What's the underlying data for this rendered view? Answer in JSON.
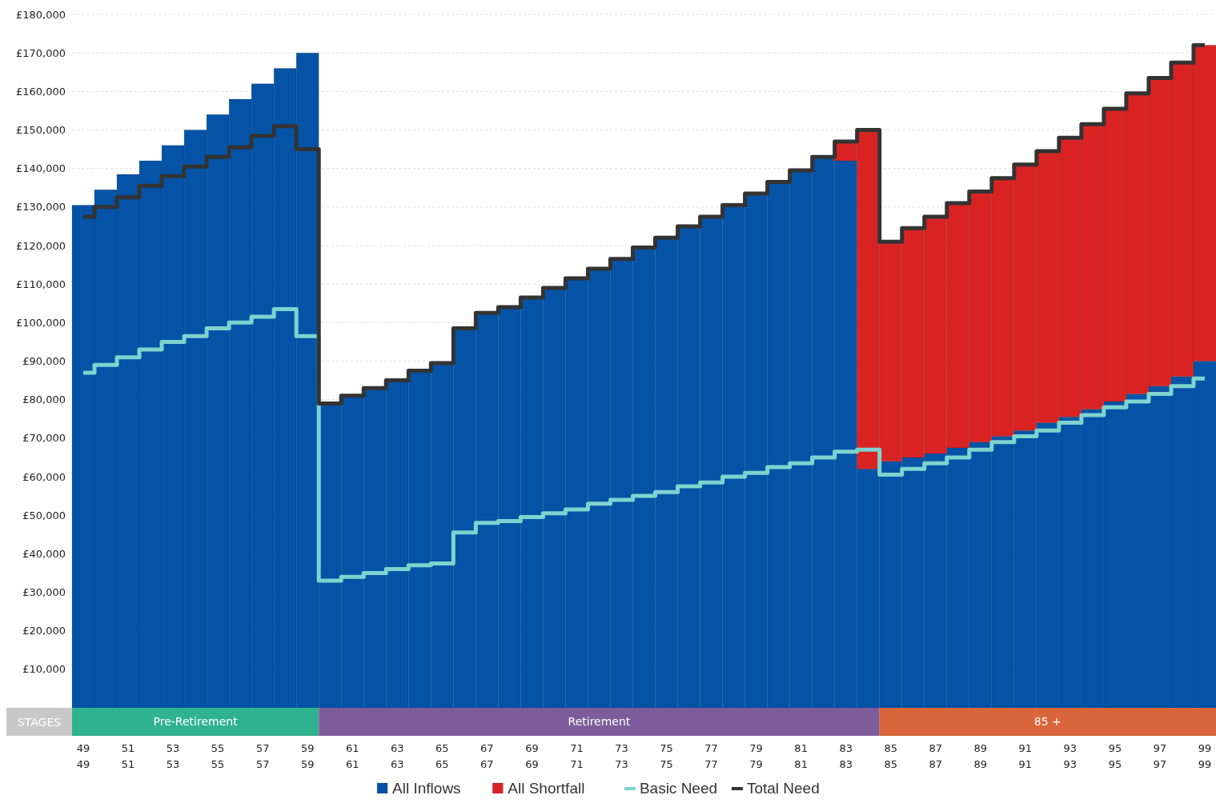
{
  "chart_data": {
    "type": "bar",
    "stacked": true,
    "categories": [
      "49",
      null,
      "51",
      null,
      "53",
      null,
      "55",
      null,
      "57",
      null,
      "59",
      null,
      "61",
      null,
      "63",
      null,
      "65",
      null,
      "67",
      null,
      "69",
      null,
      "71",
      null,
      "73",
      null,
      "75",
      null,
      "77",
      null,
      "79",
      null,
      "81",
      null,
      "83",
      null,
      "85",
      null,
      "87",
      null,
      "89",
      null,
      "91",
      null,
      "93",
      null,
      "95",
      null,
      "97",
      null,
      "99"
    ],
    "series": [
      {
        "name": "All Inflows",
        "color": "#0553a6",
        "values": [
          130500,
          134500,
          138500,
          142000,
          146000,
          150000,
          154000,
          158000,
          162000,
          166000,
          170000,
          79000,
          81000,
          83000,
          85000,
          87500,
          89500,
          98500,
          102500,
          104000,
          106500,
          109000,
          111500,
          114000,
          116500,
          119500,
          122000,
          125000,
          127500,
          130500,
          133500,
          136500,
          139500,
          143000,
          142000,
          62000,
          64000,
          65000,
          66000,
          67500,
          69000,
          70500,
          72000,
          74000,
          75500,
          77500,
          79500,
          81500,
          83500,
          86000,
          90000
        ]
      },
      {
        "name": "All Shortfall",
        "color": "#d92323",
        "values": [
          null,
          null,
          null,
          null,
          null,
          null,
          null,
          null,
          null,
          null,
          null,
          null,
          null,
          null,
          null,
          null,
          null,
          null,
          null,
          null,
          null,
          null,
          null,
          null,
          null,
          null,
          null,
          null,
          null,
          null,
          null,
          null,
          null,
          null,
          5000,
          88000,
          57000,
          59500,
          61500,
          63500,
          65000,
          67000,
          69000,
          70500,
          72500,
          74000,
          76000,
          78000,
          80000,
          81500,
          82000
        ]
      },
      {
        "name": "Basic Need",
        "type": "step",
        "color": "#7fd3cf",
        "values": [
          87000,
          89000,
          91000,
          93000,
          95000,
          96500,
          98500,
          100000,
          101500,
          103500,
          96500,
          33000,
          34000,
          35000,
          36000,
          37000,
          37500,
          45500,
          48000,
          48500,
          49500,
          50500,
          51500,
          53000,
          54000,
          55000,
          56000,
          57500,
          58500,
          60000,
          61000,
          62500,
          63500,
          65000,
          66500,
          67000,
          60500,
          62000,
          63500,
          65000,
          67000,
          69000,
          70500,
          72000,
          74000,
          76000,
          78000,
          79500,
          81500,
          83500,
          85500
        ]
      },
      {
        "name": "Total Need",
        "type": "step",
        "color": "#333333",
        "values": [
          127500,
          130000,
          132500,
          135500,
          138000,
          140500,
          143000,
          145500,
          148500,
          151000,
          145000,
          79000,
          81000,
          83000,
          85000,
          87500,
          89500,
          98500,
          102500,
          104000,
          106500,
          109000,
          111500,
          114000,
          116500,
          119500,
          122000,
          125000,
          127500,
          130500,
          133500,
          136500,
          139500,
          143000,
          147000,
          150000,
          121000,
          124500,
          127500,
          131000,
          134000,
          137500,
          141000,
          144500,
          148000,
          151500,
          155500,
          159500,
          163500,
          167500,
          172000
        ]
      }
    ],
    "ylim": [
      0,
      180000
    ],
    "yticks": [
      {
        "value": 10000,
        "label": "£10,000"
      },
      {
        "value": 20000,
        "label": "£20,000"
      },
      {
        "value": 30000,
        "label": "£30,000"
      },
      {
        "value": 40000,
        "label": "£40,000"
      },
      {
        "value": 50000,
        "label": "£50,000"
      },
      {
        "value": 60000,
        "label": "£60,000"
      },
      {
        "value": 70000,
        "label": "£70,000"
      },
      {
        "value": 80000,
        "label": "£80,000"
      },
      {
        "value": 90000,
        "label": "£90,000"
      },
      {
        "value": 100000,
        "label": "£100,000"
      },
      {
        "value": 110000,
        "label": "£110,000"
      },
      {
        "value": 120000,
        "label": "£120,000"
      },
      {
        "value": 130000,
        "label": "£130,000"
      },
      {
        "value": 140000,
        "label": "£140,000"
      },
      {
        "value": 150000,
        "label": "£150,000"
      },
      {
        "value": 160000,
        "label": "£160,000"
      },
      {
        "value": 170000,
        "label": "£170,000"
      },
      {
        "value": 180000,
        "label": "£180,000"
      }
    ],
    "grid": "y",
    "legend": "bottom",
    "annotations": [
      "STAGES",
      "Pre-Retirement",
      "Retirement",
      "85 +"
    ]
  }
}
